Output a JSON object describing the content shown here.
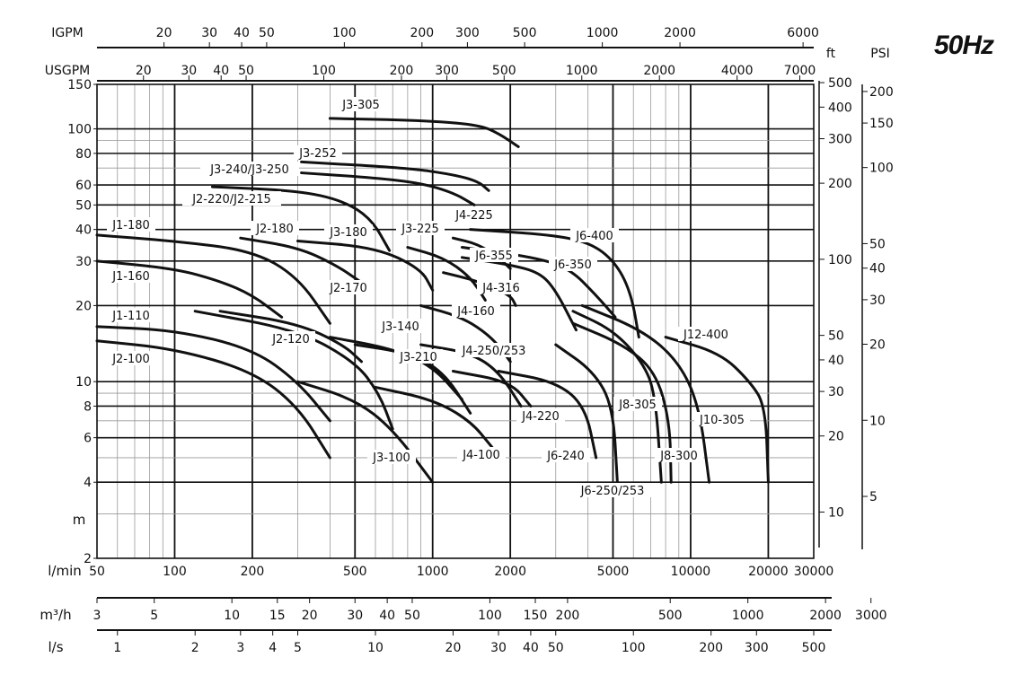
{
  "header": {
    "frequency": "50Hz"
  },
  "chart_data": {
    "type": "line",
    "title": "50Hz",
    "x_axis": {
      "label": "l/min",
      "scale": "log",
      "range": [
        50,
        30000
      ],
      "ticks": [
        50,
        100,
        200,
        500,
        1000,
        2000,
        5000,
        10000,
        20000,
        30000
      ]
    },
    "y_axis": {
      "label": "m",
      "scale": "log",
      "range": [
        2,
        150
      ],
      "ticks": [
        2,
        4,
        6,
        8,
        10,
        20,
        30,
        40,
        50,
        60,
        80,
        100,
        150
      ]
    },
    "secondary_axes": {
      "igpm": {
        "label": "IGPM",
        "ticks": [
          20,
          30,
          40,
          50,
          100,
          200,
          300,
          500,
          1000,
          2000,
          6000
        ]
      },
      "usgpm": {
        "label": "USGPM",
        "ticks": [
          20,
          30,
          40,
          50,
          100,
          200,
          300,
          500,
          1000,
          2000,
          4000,
          7000
        ]
      },
      "m3h": {
        "label": "m³/h",
        "ticks": [
          3,
          5,
          10,
          15,
          20,
          30,
          40,
          50,
          100,
          150,
          200,
          500,
          1000,
          2000,
          3000
        ]
      },
      "ls": {
        "label": "l/s",
        "ticks": [
          1,
          2,
          3,
          4,
          5,
          10,
          20,
          30,
          40,
          50,
          100,
          200,
          300,
          500
        ]
      },
      "ft": {
        "label": "ft",
        "ticks": [
          500,
          400,
          300,
          200,
          100,
          50,
          40,
          30,
          20,
          10
        ]
      },
      "psi": {
        "label": "PSI",
        "ticks": [
          200,
          150,
          100,
          50,
          40,
          30,
          20,
          10,
          5
        ]
      }
    },
    "grid": true,
    "series": [
      {
        "name": "J3-305",
        "points": [
          [
            400,
            110
          ],
          [
            900,
            108
          ],
          [
            1500,
            104
          ],
          [
            1800,
            96
          ],
          [
            2150,
            85
          ]
        ]
      },
      {
        "name": "J3-252",
        "points": [
          [
            310,
            74
          ],
          [
            800,
            70
          ],
          [
            1200,
            66
          ],
          [
            1500,
            62
          ],
          [
            1650,
            57
          ]
        ]
      },
      {
        "name": "J3-240/J3-250",
        "points": [
          [
            310,
            67
          ],
          [
            600,
            64
          ],
          [
            900,
            61
          ],
          [
            1200,
            56
          ],
          [
            1450,
            50
          ]
        ]
      },
      {
        "name": "J2-220/J2-215",
        "points": [
          [
            140,
            59
          ],
          [
            300,
            57
          ],
          [
            450,
            52
          ],
          [
            580,
            44
          ],
          [
            680,
            33
          ]
        ]
      },
      {
        "name": "J1-180",
        "points": [
          [
            50,
            38
          ],
          [
            100,
            36
          ],
          [
            200,
            33
          ],
          [
            300,
            26
          ],
          [
            400,
            17
          ]
        ]
      },
      {
        "name": "J2-180",
        "points": [
          [
            180,
            37
          ],
          [
            300,
            34
          ],
          [
            420,
            29
          ],
          [
            520,
            25
          ]
        ]
      },
      {
        "name": "J3-180",
        "points": [
          [
            300,
            36
          ],
          [
            600,
            34
          ],
          [
            900,
            28
          ],
          [
            1000,
            23
          ]
        ]
      },
      {
        "name": "J1-160",
        "points": [
          [
            50,
            30
          ],
          [
            100,
            28
          ],
          [
            150,
            25
          ],
          [
            200,
            22
          ],
          [
            260,
            18
          ]
        ]
      },
      {
        "name": "J3-225",
        "points": [
          [
            800,
            34
          ],
          [
            1100,
            31
          ],
          [
            1400,
            26
          ],
          [
            1600,
            21
          ]
        ]
      },
      {
        "name": "J4-225",
        "points": [
          [
            1200,
            37
          ],
          [
            1500,
            35
          ],
          [
            1800,
            31
          ],
          [
            2000,
            28
          ]
        ]
      },
      {
        "name": "J6-400",
        "points": [
          [
            1400,
            40
          ],
          [
            3000,
            38
          ],
          [
            4200,
            35
          ],
          [
            5200,
            29
          ],
          [
            5900,
            22
          ],
          [
            6300,
            15
          ]
        ]
      },
      {
        "name": "J6-355",
        "points": [
          [
            1300,
            34
          ],
          [
            2500,
            31
          ],
          [
            3400,
            28
          ],
          [
            4300,
            22
          ],
          [
            5100,
            18
          ]
        ]
      },
      {
        "name": "J6-350",
        "points": [
          [
            1300,
            31
          ],
          [
            2000,
            29
          ],
          [
            2600,
            27
          ],
          [
            3000,
            23
          ],
          [
            3600,
            16
          ]
        ]
      },
      {
        "name": "J4-316",
        "points": [
          [
            1100,
            27
          ],
          [
            1500,
            25
          ],
          [
            2000,
            22
          ],
          [
            2100,
            20
          ]
        ]
      },
      {
        "name": "J2-170",
        "points": [
          [
            150,
            19
          ],
          [
            300,
            17
          ],
          [
            450,
            14
          ],
          [
            530,
            12
          ]
        ]
      },
      {
        "name": "J4-160",
        "points": [
          [
            900,
            20
          ],
          [
            1300,
            18
          ],
          [
            1700,
            15
          ],
          [
            2000,
            12
          ]
        ]
      },
      {
        "name": "J1-110",
        "points": [
          [
            50,
            16.5
          ],
          [
            100,
            16
          ],
          [
            200,
            13.5
          ],
          [
            300,
            10
          ],
          [
            400,
            7
          ]
        ]
      },
      {
        "name": "J2-120",
        "points": [
          [
            120,
            19
          ],
          [
            300,
            16
          ],
          [
            500,
            12
          ],
          [
            620,
            9
          ],
          [
            700,
            6.5
          ]
        ]
      },
      {
        "name": "J3-140",
        "points": [
          [
            400,
            15
          ],
          [
            700,
            13.5
          ],
          [
            1000,
            11.5
          ],
          [
            1300,
            8.5
          ]
        ]
      },
      {
        "name": "J3-210",
        "points": [
          [
            500,
            14
          ],
          [
            800,
            13
          ],
          [
            1100,
            11
          ],
          [
            1400,
            7.5
          ]
        ]
      },
      {
        "name": "J4-250/253",
        "points": [
          [
            900,
            14
          ],
          [
            1400,
            13
          ],
          [
            1800,
            11
          ],
          [
            2200,
            8
          ]
        ]
      },
      {
        "name": "J2-100",
        "points": [
          [
            50,
            14.5
          ],
          [
            100,
            13.5
          ],
          [
            200,
            11
          ],
          [
            300,
            8
          ],
          [
            400,
            5
          ]
        ]
      },
      {
        "name": "J3-100",
        "points": [
          [
            300,
            10
          ],
          [
            500,
            8.5
          ],
          [
            700,
            6.5
          ],
          [
            1000,
            4
          ]
        ]
      },
      {
        "name": "J4-100",
        "points": [
          [
            600,
            9.5
          ],
          [
            1000,
            8.5
          ],
          [
            1400,
            7
          ],
          [
            1700,
            5.5
          ]
        ]
      },
      {
        "name": "J4-220",
        "points": [
          [
            1200,
            11
          ],
          [
            2000,
            10
          ],
          [
            2400,
            8
          ]
        ]
      },
      {
        "name": "J6-240",
        "points": [
          [
            1800,
            11
          ],
          [
            3000,
            10
          ],
          [
            3900,
            8
          ],
          [
            4300,
            5
          ]
        ]
      },
      {
        "name": "J6-250/253",
        "points": [
          [
            3000,
            14
          ],
          [
            4200,
            11
          ],
          [
            5000,
            8
          ],
          [
            5200,
            4
          ]
        ]
      },
      {
        "name": "J8-305",
        "points": [
          [
            3500,
            19
          ],
          [
            5000,
            16
          ],
          [
            6500,
            12
          ],
          [
            7300,
            9
          ],
          [
            7700,
            4
          ]
        ]
      },
      {
        "name": "J8-300",
        "points": [
          [
            3500,
            17
          ],
          [
            5500,
            14
          ],
          [
            7300,
            11
          ],
          [
            8300,
            7
          ],
          [
            8400,
            4
          ]
        ]
      },
      {
        "name": "J10-305",
        "points": [
          [
            3800,
            20
          ],
          [
            6500,
            16
          ],
          [
            9000,
            12
          ],
          [
            10800,
            8
          ],
          [
            11800,
            4
          ]
        ]
      },
      {
        "name": "J12-400",
        "points": [
          [
            8000,
            15
          ],
          [
            13000,
            13
          ],
          [
            17000,
            10
          ],
          [
            19500,
            8
          ],
          [
            20000,
            4
          ]
        ]
      }
    ]
  },
  "labels": {
    "igpm": "IGPM",
    "usgpm": "USGPM",
    "ft": "ft",
    "psi": "PSI",
    "m": "m",
    "lmin": "l/min",
    "m3h": "m³/h",
    "ls": "l/s"
  }
}
